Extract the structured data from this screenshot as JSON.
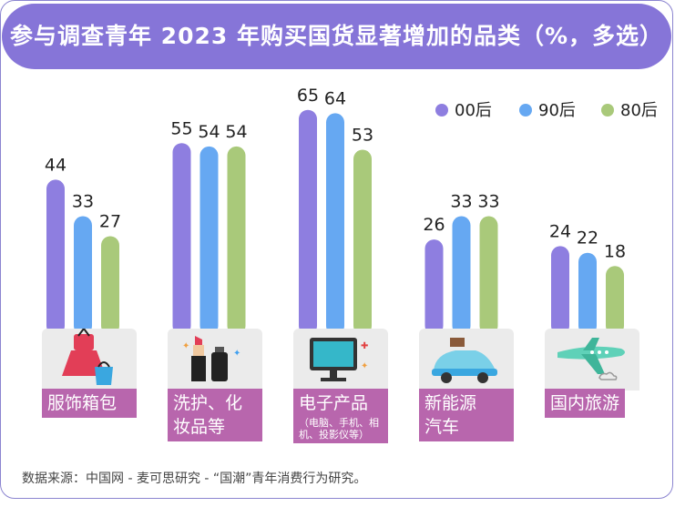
{
  "title": "参与调查青年 2023 年购买国货显著增加的品类（%，多选）",
  "footer": "数据来源：中国网 - 麦可思研究 - “国潮”青年消费行为研究。",
  "colors": {
    "00后": "#8e7ee0",
    "90后": "#66a8f2",
    "80后": "#a9c97a",
    "title_bg": "#8675d8",
    "label_bg": "#b866ad"
  },
  "chart_data": {
    "type": "bar",
    "title": "参与调查青年 2023 年购买国货显著增加的品类（%，多选）",
    "categories": [
      "服饰箱包",
      "洗护、化妆品等",
      "电子产品",
      "新能源汽车",
      "国内旅游"
    ],
    "category_sub": [
      "",
      "",
      "（电脑、手机、相机、投影仪等）",
      "",
      ""
    ],
    "series": [
      {
        "name": "00后",
        "values": [
          44,
          55,
          65,
          26,
          24
        ]
      },
      {
        "name": "90后",
        "values": [
          33,
          54,
          64,
          33,
          22
        ]
      },
      {
        "name": "80后",
        "values": [
          27,
          54,
          53,
          33,
          18
        ]
      }
    ],
    "ylim": [
      0,
      65
    ],
    "legend": "top-right",
    "grid": false
  },
  "labels": {
    "cat0_line1": "服饰箱包",
    "cat0_line2": "",
    "cat1_line1": "洗护、化",
    "cat1_line2": "妆品等",
    "cat2_line1": "电子产品",
    "cat2_sub": "（电脑、手机、相机、投影仪等）",
    "cat3_line1": "新能源",
    "cat3_line2": "汽车",
    "cat4_line1": "国内旅游"
  },
  "legend_items": [
    "00后",
    "90后",
    "80后"
  ],
  "icons": [
    "dress-handbag-icon",
    "lipstick-bottle-icon",
    "tv-monitor-icon",
    "electric-car-icon",
    "airplane-icon"
  ]
}
